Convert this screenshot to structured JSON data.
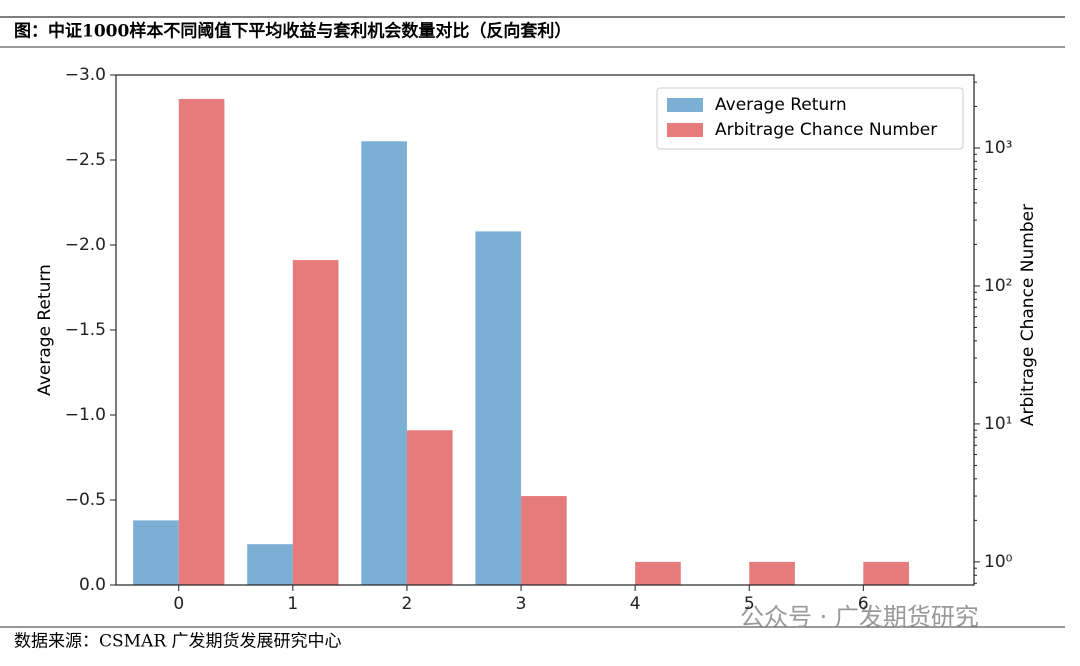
{
  "header": {
    "title": "图：中证1000样本不同阈值下平均收益与套利机会数量对比（反向套利）"
  },
  "footer": {
    "source": "数据来源：CSMAR 广发期货发展研究中心",
    "watermark": "公众号 · 广发期货研究"
  },
  "chart_data": {
    "type": "bar",
    "x": [
      0,
      1,
      2,
      3,
      4,
      5,
      6
    ],
    "xlim": [
      -0.55,
      6.97
    ],
    "xticks": [
      0,
      1,
      2,
      3,
      4,
      5,
      6
    ],
    "ylabel": "Average Return",
    "y2label": "Arbitrage Chance Number",
    "ylim": [
      0,
      -3.0
    ],
    "yticks": [
      {
        "value": 0,
        "label": "0.0"
      },
      {
        "value": -0.5,
        "label": "−0.5"
      },
      {
        "value": -1.0,
        "label": "−1.0"
      },
      {
        "value": -1.5,
        "label": "−1.5"
      },
      {
        "value": -2.0,
        "label": "−2.0"
      },
      {
        "value": -2.5,
        "label": "−2.5"
      },
      {
        "value": -3.0,
        "label": "−3.0"
      }
    ],
    "y2lim": [
      0.68,
      3380
    ],
    "y2scale": "log",
    "y2ticks": [
      {
        "value": 1,
        "label": "10⁰"
      },
      {
        "value": 10,
        "label": "10¹"
      },
      {
        "value": 100,
        "label": "10²"
      },
      {
        "value": 1000,
        "label": "10³"
      }
    ],
    "legend": "upper right",
    "series": [
      {
        "name": "Average Return",
        "color": "#7bafd4",
        "values": [
          -0.38,
          -0.24,
          -2.61,
          -2.08,
          null,
          null,
          null
        ]
      },
      {
        "name": "Arbitrage Chance Number",
        "color": "#e57b7b",
        "axis": "y2",
        "values": [
          2265,
          154,
          9,
          3,
          1,
          1,
          1
        ]
      }
    ]
  }
}
